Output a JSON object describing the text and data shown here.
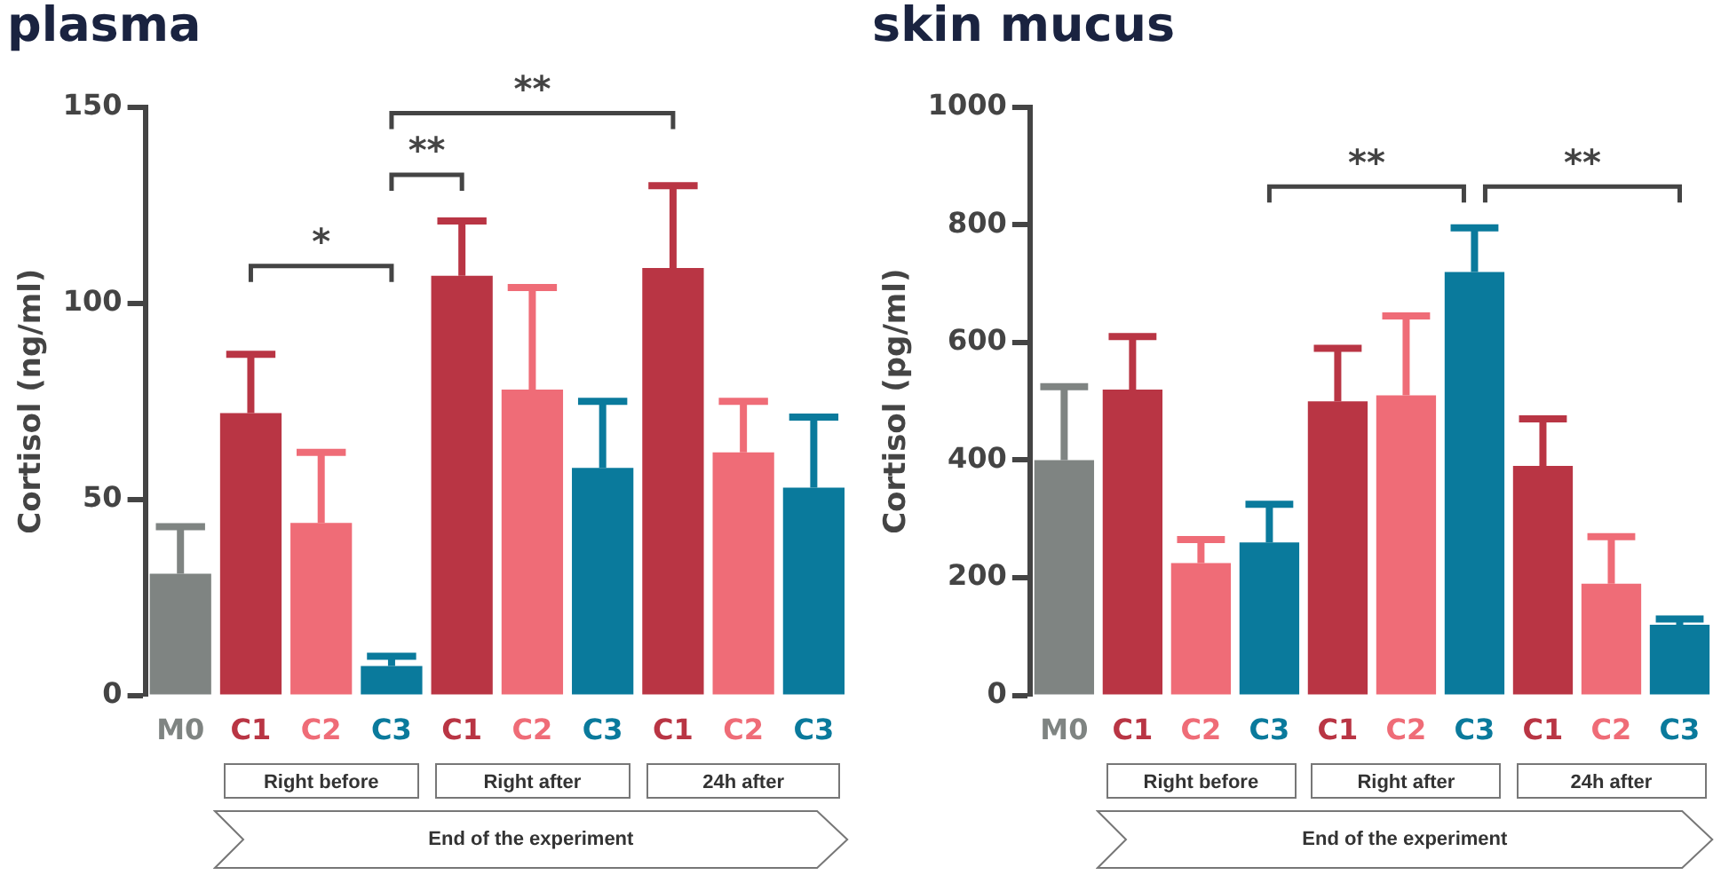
{
  "chart_data": [
    {
      "type": "bar",
      "title": "plasma",
      "ylabel": "Cortisol (ng/ml)",
      "categories": [
        "M0",
        "C1",
        "C2",
        "C3",
        "C1",
        "C2",
        "C3",
        "C1",
        "C2",
        "C3"
      ],
      "values": [
        31,
        72,
        44,
        7.5,
        107,
        78,
        58,
        109,
        62,
        53
      ],
      "colors": [
        "#7f8482",
        "#b93544",
        "#ef6c77",
        "#0a7a9c",
        "#b93544",
        "#ef6c77",
        "#0a7a9c",
        "#b93544",
        "#ef6c77",
        "#0a7a9c"
      ],
      "errors": [
        [
          31,
          43
        ],
        [
          72,
          87
        ],
        [
          44,
          62
        ],
        [
          7.5,
          10
        ],
        [
          107,
          121
        ],
        [
          78,
          104
        ],
        [
          58,
          75
        ],
        [
          109,
          130
        ],
        [
          62,
          75
        ],
        [
          53,
          71
        ]
      ],
      "ylim": [
        0,
        150
      ],
      "yticks": [
        0,
        50,
        100,
        150
      ],
      "grid": false,
      "legend": false,
      "annotations": [
        "*",
        "**",
        "**",
        "Right before",
        "Right after",
        "24h after",
        "End of the experiment"
      ]
    },
    {
      "type": "bar",
      "title": "skin mucus",
      "ylabel": "Cortisol (pg/ml)",
      "categories": [
        "M0",
        "C1",
        "C2",
        "C3",
        "C1",
        "C2",
        "C3",
        "C1",
        "C2",
        "C3"
      ],
      "values": [
        400,
        520,
        225,
        260,
        500,
        510,
        720,
        390,
        190,
        120
      ],
      "colors": [
        "#7f8482",
        "#b93544",
        "#ef6c77",
        "#0a7a9c",
        "#b93544",
        "#ef6c77",
        "#0a7a9c",
        "#b93544",
        "#ef6c77",
        "#0a7a9c"
      ],
      "errors": [
        [
          400,
          525
        ],
        [
          520,
          610
        ],
        [
          225,
          265
        ],
        [
          260,
          325
        ],
        [
          500,
          590
        ],
        [
          510,
          645
        ],
        [
          720,
          795
        ],
        [
          390,
          470
        ],
        [
          190,
          270
        ],
        [
          120,
          130
        ]
      ],
      "ylim": [
        0,
        1000
      ],
      "yticks": [
        0,
        200,
        400,
        600,
        800,
        1000
      ],
      "grid": false,
      "legend": false,
      "annotations": [
        "**",
        "**",
        "Right before",
        "Right after",
        "24h after",
        "End of the experiment"
      ]
    }
  ]
}
